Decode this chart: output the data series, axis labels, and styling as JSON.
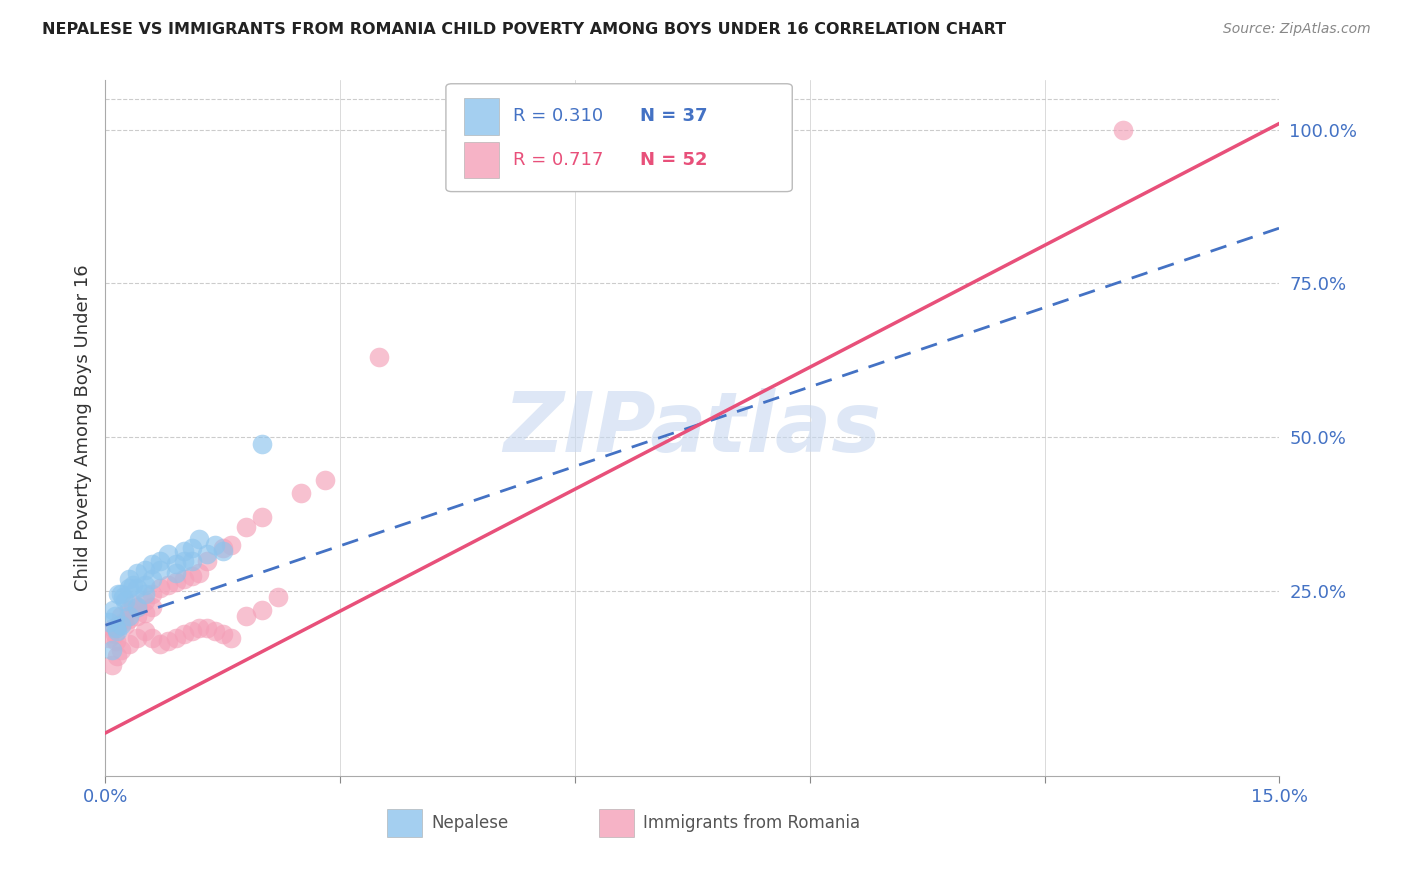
{
  "title": "NEPALESE VS IMMIGRANTS FROM ROMANIA CHILD POVERTY AMONG BOYS UNDER 16 CORRELATION CHART",
  "source": "Source: ZipAtlas.com",
  "ylabel_left": "Child Poverty Among Boys Under 16",
  "x_min": 0.0,
  "x_max": 0.15,
  "y_min": -0.05,
  "y_max": 1.08,
  "nepalese_color": "#8DC4ED",
  "romania_color": "#F4A0B8",
  "line_nepalese_color": "#4472C4",
  "line_romania_color": "#E8507A",
  "watermark_text": "ZIPatlas",
  "watermark_color": "#C8D8F0",
  "nepal_R": "0.310",
  "nepal_N": "37",
  "romania_R": "0.717",
  "romania_N": "52",
  "nepal_line": [
    0.0,
    0.195,
    0.15,
    0.84
  ],
  "romania_line": [
    0.0,
    0.02,
    0.15,
    1.01
  ],
  "nepalese_x": [
    0.0005,
    0.001,
    0.0012,
    0.0014,
    0.0016,
    0.002,
    0.0022,
    0.0025,
    0.003,
    0.003,
    0.0035,
    0.004,
    0.004,
    0.005,
    0.005,
    0.006,
    0.006,
    0.007,
    0.007,
    0.008,
    0.009,
    0.009,
    0.01,
    0.01,
    0.011,
    0.011,
    0.012,
    0.013,
    0.014,
    0.015,
    0.0008,
    0.0015,
    0.002,
    0.003,
    0.004,
    0.005,
    0.02
  ],
  "nepalese_y": [
    0.2,
    0.22,
    0.21,
    0.19,
    0.245,
    0.245,
    0.24,
    0.235,
    0.27,
    0.255,
    0.26,
    0.28,
    0.255,
    0.285,
    0.26,
    0.295,
    0.27,
    0.3,
    0.285,
    0.31,
    0.295,
    0.28,
    0.315,
    0.3,
    0.32,
    0.3,
    0.335,
    0.31,
    0.325,
    0.315,
    0.155,
    0.185,
    0.195,
    0.21,
    0.225,
    0.245,
    0.49
  ],
  "romania_x": [
    0.0005,
    0.001,
    0.0012,
    0.0014,
    0.0016,
    0.002,
    0.0022,
    0.0025,
    0.003,
    0.003,
    0.0035,
    0.004,
    0.0042,
    0.005,
    0.005,
    0.006,
    0.006,
    0.007,
    0.008,
    0.009,
    0.01,
    0.011,
    0.012,
    0.013,
    0.015,
    0.016,
    0.018,
    0.02,
    0.025,
    0.028,
    0.0008,
    0.0015,
    0.002,
    0.003,
    0.004,
    0.005,
    0.006,
    0.007,
    0.008,
    0.009,
    0.01,
    0.011,
    0.012,
    0.013,
    0.014,
    0.015,
    0.016,
    0.018,
    0.02,
    0.022,
    0.035,
    0.13
  ],
  "romania_y": [
    0.175,
    0.19,
    0.18,
    0.17,
    0.195,
    0.21,
    0.2,
    0.195,
    0.22,
    0.205,
    0.23,
    0.21,
    0.225,
    0.235,
    0.215,
    0.245,
    0.225,
    0.255,
    0.26,
    0.265,
    0.27,
    0.275,
    0.28,
    0.3,
    0.32,
    0.325,
    0.355,
    0.37,
    0.41,
    0.43,
    0.13,
    0.145,
    0.155,
    0.165,
    0.175,
    0.185,
    0.175,
    0.165,
    0.17,
    0.175,
    0.18,
    0.185,
    0.19,
    0.19,
    0.185,
    0.18,
    0.175,
    0.21,
    0.22,
    0.24,
    0.63,
    1.0
  ]
}
